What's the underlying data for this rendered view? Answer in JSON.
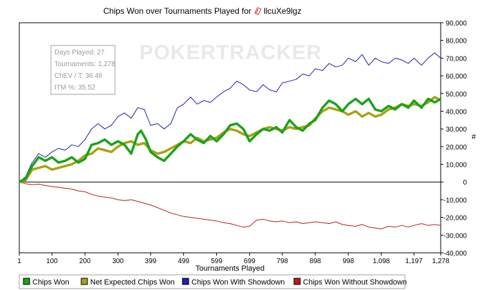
{
  "chart_data": {
    "type": "line",
    "title": "Chips Won over Tournaments Played for",
    "player": "llcuXe9lgz",
    "watermark": "POKERTRACKER",
    "xlabel": "Tournaments Played",
    "ylabel": "#",
    "xlim": [
      1,
      1278
    ],
    "ylim": [
      -40000,
      90000
    ],
    "x_ticks": [
      1,
      100,
      200,
      300,
      399,
      499,
      599,
      699,
      798,
      898,
      998,
      1098,
      1197,
      1278
    ],
    "x_tick_labels": [
      "1",
      "100",
      "200",
      "300",
      "399",
      "499",
      "599",
      "699",
      "798",
      "898",
      "998",
      "1,098",
      "1,197",
      "1,278"
    ],
    "y_ticks": [
      -40000,
      -30000,
      -20000,
      -10000,
      0,
      10000,
      20000,
      30000,
      40000,
      50000,
      60000,
      70000,
      80000,
      90000
    ],
    "y_tick_labels": [
      "-40,000",
      "-30,000",
      "-20,000",
      "-10,000",
      "0",
      "10,000",
      "20,000",
      "30,000",
      "40,000",
      "50,000",
      "60,000",
      "70,000",
      "80,000",
      "90,000"
    ],
    "grid": false,
    "legend_position": "bottom",
    "info_box": [
      {
        "label": "Days Played",
        "value": "27"
      },
      {
        "label": "Tournaments",
        "value": "1,278"
      },
      {
        "label": "ChEV / T",
        "value": "36.46"
      },
      {
        "label": "ITM %",
        "value": "35.52"
      }
    ],
    "series": [
      {
        "name": "Chips Won",
        "color": "#1aa31a",
        "width": 3.5,
        "points": [
          [
            1,
            0
          ],
          [
            20,
            2000
          ],
          [
            40,
            9000
          ],
          [
            60,
            14000
          ],
          [
            80,
            12000
          ],
          [
            100,
            14000
          ],
          [
            120,
            11000
          ],
          [
            140,
            12000
          ],
          [
            160,
            14000
          ],
          [
            180,
            11000
          ],
          [
            200,
            13000
          ],
          [
            220,
            21000
          ],
          [
            240,
            22000
          ],
          [
            260,
            24000
          ],
          [
            280,
            21000
          ],
          [
            300,
            23000
          ],
          [
            320,
            21000
          ],
          [
            340,
            16000
          ],
          [
            360,
            27000
          ],
          [
            370,
            29000
          ],
          [
            385,
            24000
          ],
          [
            399,
            17000
          ],
          [
            420,
            14000
          ],
          [
            440,
            12000
          ],
          [
            460,
            16000
          ],
          [
            480,
            20000
          ],
          [
            499,
            23000
          ],
          [
            520,
            27000
          ],
          [
            540,
            24000
          ],
          [
            560,
            22000
          ],
          [
            580,
            26000
          ],
          [
            599,
            23000
          ],
          [
            620,
            27000
          ],
          [
            640,
            32000
          ],
          [
            660,
            33000
          ],
          [
            680,
            30000
          ],
          [
            699,
            23000
          ],
          [
            720,
            27000
          ],
          [
            740,
            30000
          ],
          [
            760,
            29000
          ],
          [
            780,
            31000
          ],
          [
            798,
            28000
          ],
          [
            820,
            35000
          ],
          [
            840,
            31000
          ],
          [
            860,
            29000
          ],
          [
            880,
            33000
          ],
          [
            898,
            35000
          ],
          [
            920,
            42000
          ],
          [
            940,
            46000
          ],
          [
            960,
            44000
          ],
          [
            980,
            40000
          ],
          [
            998,
            44000
          ],
          [
            1020,
            47000
          ],
          [
            1040,
            44000
          ],
          [
            1060,
            47000
          ],
          [
            1080,
            41000
          ],
          [
            1098,
            40000
          ],
          [
            1120,
            43000
          ],
          [
            1140,
            41000
          ],
          [
            1160,
            44000
          ],
          [
            1180,
            42000
          ],
          [
            1197,
            46000
          ],
          [
            1220,
            42000
          ],
          [
            1240,
            47000
          ],
          [
            1260,
            45000
          ],
          [
            1278,
            47000
          ]
        ]
      },
      {
        "name": "Net Expected Chips Won",
        "color": "#a8a214",
        "width": 3.5,
        "points": [
          [
            1,
            0
          ],
          [
            20,
            1000
          ],
          [
            40,
            7000
          ],
          [
            60,
            8000
          ],
          [
            80,
            9000
          ],
          [
            100,
            7000
          ],
          [
            120,
            8000
          ],
          [
            140,
            9000
          ],
          [
            160,
            10000
          ],
          [
            180,
            12000
          ],
          [
            200,
            15000
          ],
          [
            220,
            16000
          ],
          [
            240,
            19000
          ],
          [
            260,
            18000
          ],
          [
            280,
            17000
          ],
          [
            300,
            20000
          ],
          [
            320,
            22000
          ],
          [
            340,
            23000
          ],
          [
            360,
            21000
          ],
          [
            380,
            22000
          ],
          [
            399,
            18000
          ],
          [
            420,
            16000
          ],
          [
            440,
            17000
          ],
          [
            460,
            19000
          ],
          [
            480,
            21000
          ],
          [
            499,
            23000
          ],
          [
            520,
            22000
          ],
          [
            540,
            25000
          ],
          [
            560,
            23000
          ],
          [
            580,
            24000
          ],
          [
            599,
            25000
          ],
          [
            620,
            28000
          ],
          [
            640,
            30000
          ],
          [
            660,
            29000
          ],
          [
            680,
            27000
          ],
          [
            699,
            26000
          ],
          [
            720,
            28000
          ],
          [
            740,
            30000
          ],
          [
            760,
            31000
          ],
          [
            780,
            30000
          ],
          [
            798,
            29000
          ],
          [
            820,
            31000
          ],
          [
            840,
            30000
          ],
          [
            860,
            31000
          ],
          [
            880,
            32000
          ],
          [
            898,
            36000
          ],
          [
            920,
            40000
          ],
          [
            940,
            42000
          ],
          [
            960,
            41000
          ],
          [
            980,
            40000
          ],
          [
            998,
            38000
          ],
          [
            1020,
            40000
          ],
          [
            1040,
            37000
          ],
          [
            1060,
            39000
          ],
          [
            1080,
            37000
          ],
          [
            1098,
            38000
          ],
          [
            1120,
            41000
          ],
          [
            1140,
            42000
          ],
          [
            1160,
            44000
          ],
          [
            1180,
            43000
          ],
          [
            1197,
            44000
          ],
          [
            1220,
            43000
          ],
          [
            1240,
            45000
          ],
          [
            1260,
            48000
          ],
          [
            1278,
            46000
          ]
        ]
      },
      {
        "name": "Chips Won With Showdown",
        "color": "#1f1fa8",
        "width": 1,
        "points": [
          [
            1,
            0
          ],
          [
            20,
            3000
          ],
          [
            40,
            11000
          ],
          [
            60,
            16000
          ],
          [
            80,
            14000
          ],
          [
            100,
            17000
          ],
          [
            120,
            19000
          ],
          [
            140,
            18000
          ],
          [
            160,
            21000
          ],
          [
            180,
            20000
          ],
          [
            200,
            24000
          ],
          [
            220,
            30000
          ],
          [
            240,
            33000
          ],
          [
            260,
            30000
          ],
          [
            280,
            32000
          ],
          [
            300,
            37000
          ],
          [
            320,
            39000
          ],
          [
            340,
            36000
          ],
          [
            360,
            42000
          ],
          [
            380,
            41000
          ],
          [
            399,
            32000
          ],
          [
            420,
            33000
          ],
          [
            440,
            30000
          ],
          [
            460,
            33000
          ],
          [
            480,
            42000
          ],
          [
            499,
            44000
          ],
          [
            520,
            48000
          ],
          [
            540,
            44000
          ],
          [
            560,
            46000
          ],
          [
            580,
            45000
          ],
          [
            599,
            48000
          ],
          [
            620,
            51000
          ],
          [
            640,
            53000
          ],
          [
            660,
            57000
          ],
          [
            680,
            55000
          ],
          [
            699,
            52000
          ],
          [
            720,
            51000
          ],
          [
            740,
            55000
          ],
          [
            760,
            52000
          ],
          [
            780,
            51000
          ],
          [
            798,
            56000
          ],
          [
            820,
            57000
          ],
          [
            840,
            58000
          ],
          [
            860,
            61000
          ],
          [
            880,
            60000
          ],
          [
            898,
            64000
          ],
          [
            920,
            63000
          ],
          [
            940,
            67000
          ],
          [
            960,
            65000
          ],
          [
            980,
            66000
          ],
          [
            998,
            70000
          ],
          [
            1020,
            68000
          ],
          [
            1040,
            72000
          ],
          [
            1060,
            66000
          ],
          [
            1080,
            70000
          ],
          [
            1098,
            68000
          ],
          [
            1120,
            67000
          ],
          [
            1140,
            70000
          ],
          [
            1160,
            69000
          ],
          [
            1180,
            67000
          ],
          [
            1197,
            70000
          ],
          [
            1220,
            66000
          ],
          [
            1240,
            70000
          ],
          [
            1260,
            73000
          ],
          [
            1278,
            70000
          ]
        ]
      },
      {
        "name": "Chips Won Without Showdown",
        "color": "#b81c1c",
        "width": 1,
        "points": [
          [
            1,
            0
          ],
          [
            20,
            -1000
          ],
          [
            40,
            -1500
          ],
          [
            60,
            -1200
          ],
          [
            80,
            -2000
          ],
          [
            100,
            -2500
          ],
          [
            120,
            -3000
          ],
          [
            140,
            -3500
          ],
          [
            160,
            -4000
          ],
          [
            180,
            -5000
          ],
          [
            200,
            -5500
          ],
          [
            220,
            -7000
          ],
          [
            240,
            -8000
          ],
          [
            260,
            -8500
          ],
          [
            280,
            -9000
          ],
          [
            300,
            -10000
          ],
          [
            320,
            -10500
          ],
          [
            340,
            -10000
          ],
          [
            360,
            -11000
          ],
          [
            380,
            -12000
          ],
          [
            399,
            -13000
          ],
          [
            420,
            -14500
          ],
          [
            440,
            -16000
          ],
          [
            460,
            -17500
          ],
          [
            480,
            -18500
          ],
          [
            499,
            -19500
          ],
          [
            520,
            -20000
          ],
          [
            540,
            -20500
          ],
          [
            560,
            -21000
          ],
          [
            580,
            -21500
          ],
          [
            599,
            -22000
          ],
          [
            620,
            -23000
          ],
          [
            640,
            -23500
          ],
          [
            660,
            -24500
          ],
          [
            680,
            -25500
          ],
          [
            699,
            -25000
          ],
          [
            720,
            -21500
          ],
          [
            740,
            -21000
          ],
          [
            760,
            -22000
          ],
          [
            780,
            -22500
          ],
          [
            798,
            -22000
          ],
          [
            820,
            -23000
          ],
          [
            840,
            -22500
          ],
          [
            860,
            -23500
          ],
          [
            880,
            -23000
          ],
          [
            898,
            -22500
          ],
          [
            920,
            -23000
          ],
          [
            940,
            -23500
          ],
          [
            960,
            -22500
          ],
          [
            980,
            -24000
          ],
          [
            998,
            -24500
          ],
          [
            1020,
            -25000
          ],
          [
            1040,
            -24000
          ],
          [
            1060,
            -25500
          ],
          [
            1080,
            -26000
          ],
          [
            1098,
            -26500
          ],
          [
            1120,
            -25000
          ],
          [
            1140,
            -25500
          ],
          [
            1160,
            -24500
          ],
          [
            1180,
            -25500
          ],
          [
            1197,
            -24500
          ],
          [
            1220,
            -23500
          ],
          [
            1240,
            -24500
          ],
          [
            1260,
            -24000
          ],
          [
            1278,
            -24500
          ]
        ]
      }
    ]
  }
}
